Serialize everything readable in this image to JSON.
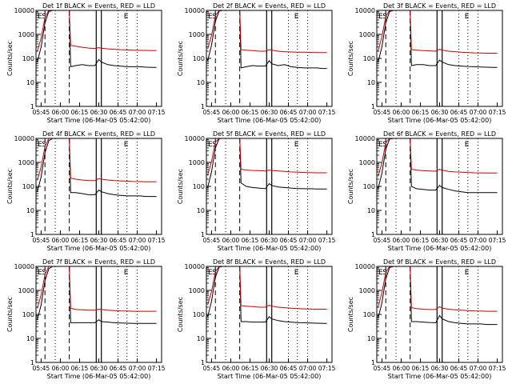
{
  "figure": {
    "colors": {
      "events": "#000000",
      "lld": "#cc0000",
      "axes": "#000000",
      "background": "#ffffff"
    },
    "shared": {
      "type": "line",
      "ylabel": "Counts/sec",
      "xlabel": "Start Time (06-Mar-05 05:42:00)",
      "y_scale": "log",
      "ylim": [
        1,
        10000
      ],
      "yticks": [
        "1",
        "10",
        "100",
        "1000",
        "10000"
      ],
      "xlim_minutes": [
        -1,
        97
      ],
      "xticks": [
        {
          "label": "05:45",
          "minutes": 3
        },
        {
          "label": "06:00",
          "minutes": 18
        },
        {
          "label": "06:15",
          "minutes": 33
        },
        {
          "label": "06:30",
          "minutes": 48
        },
        {
          "label": "06:45",
          "minutes": 63
        },
        {
          "label": "07:00",
          "minutes": 78
        },
        {
          "label": "07:15",
          "minutes": 93
        }
      ],
      "markers": [
        {
          "minutes": 6,
          "style": "dashed",
          "letter": "S"
        },
        {
          "minutes": 25,
          "style": "dashed",
          "letter": ""
        },
        {
          "minutes": 14,
          "style": "dotted",
          "letter": ""
        },
        {
          "minutes": 46,
          "style": "solid",
          "letter": ""
        },
        {
          "minutes": 50,
          "style": "solid",
          "letter": ""
        },
        {
          "minutes": 63,
          "style": "dotted",
          "letter": ""
        },
        {
          "minutes": 70,
          "style": "dotted",
          "letter": "E"
        },
        {
          "minutes": 78,
          "style": "dotted",
          "letter": ""
        }
      ],
      "start_letter": "E",
      "grid": false,
      "legend": "none"
    }
  },
  "chart_data": [
    {
      "type": "line",
      "title": "Det 1f BLACK = Events, RED = LLD",
      "series": [
        {
          "key": "events",
          "x": [
            0,
            3,
            6,
            9,
            12,
            14,
            25,
            26,
            30,
            35,
            40,
            45,
            48,
            50,
            55,
            60,
            65,
            70,
            75,
            80,
            85,
            90,
            93
          ],
          "values": [
            70,
            300,
            3000,
            9000,
            10000,
            10000,
            10000,
            45,
            50,
            55,
            50,
            50,
            90,
            70,
            55,
            50,
            48,
            45,
            45,
            45,
            43,
            42,
            42
          ]
        },
        {
          "key": "lld",
          "x": [
            0,
            3,
            6,
            9,
            12,
            14,
            25,
            26,
            30,
            35,
            40,
            45,
            48,
            50,
            55,
            60,
            65,
            70,
            75,
            80,
            85,
            90,
            93
          ],
          "values": [
            200,
            700,
            5000,
            10000,
            10000,
            10000,
            10000,
            350,
            320,
            290,
            270,
            260,
            280,
            270,
            250,
            240,
            230,
            225,
            220,
            215,
            215,
            212,
            210
          ]
        }
      ]
    },
    {
      "type": "line",
      "title": "Det 2f BLACK = Events, RED = LLD",
      "series": [
        {
          "key": "events",
          "x": [
            0,
            3,
            6,
            9,
            12,
            14,
            25,
            26,
            30,
            35,
            40,
            45,
            48,
            50,
            55,
            60,
            65,
            70,
            75,
            80,
            85,
            90,
            93
          ],
          "values": [
            80,
            350,
            3500,
            9500,
            10000,
            10000,
            10000,
            40,
            45,
            50,
            48,
            48,
            80,
            60,
            50,
            55,
            45,
            42,
            40,
            40,
            40,
            38,
            38
          ]
        },
        {
          "key": "lld",
          "x": [
            0,
            3,
            6,
            9,
            12,
            14,
            25,
            26,
            30,
            35,
            40,
            45,
            48,
            50,
            55,
            60,
            65,
            70,
            75,
            80,
            85,
            90,
            93
          ],
          "values": [
            250,
            900,
            6000,
            10000,
            10000,
            10000,
            10000,
            230,
            220,
            210,
            200,
            200,
            230,
            220,
            200,
            190,
            185,
            180,
            180,
            178,
            175,
            175,
            175
          ]
        }
      ]
    },
    {
      "type": "line",
      "title": "Det 3f BLACK = Events, RED = LLD",
      "series": [
        {
          "key": "events",
          "x": [
            0,
            3,
            6,
            9,
            12,
            14,
            25,
            26,
            30,
            35,
            40,
            45,
            48,
            50,
            55,
            60,
            65,
            70,
            75,
            80,
            85,
            90,
            93
          ],
          "values": [
            70,
            300,
            3000,
            9000,
            10000,
            10000,
            10000,
            50,
            55,
            55,
            50,
            50,
            85,
            70,
            55,
            50,
            48,
            46,
            45,
            44,
            43,
            42,
            42
          ]
        },
        {
          "key": "lld",
          "x": [
            0,
            3,
            6,
            9,
            12,
            14,
            25,
            26,
            30,
            35,
            40,
            45,
            48,
            50,
            55,
            60,
            65,
            70,
            75,
            80,
            85,
            90,
            93
          ],
          "values": [
            200,
            800,
            5500,
            10000,
            10000,
            10000,
            10000,
            230,
            220,
            210,
            205,
            200,
            240,
            220,
            200,
            190,
            180,
            175,
            170,
            168,
            165,
            165,
            165
          ]
        }
      ]
    },
    {
      "type": "line",
      "title": "Det 4f BLACK = Events, RED = LLD",
      "series": [
        {
          "key": "events",
          "x": [
            0,
            3,
            6,
            9,
            12,
            14,
            25,
            26,
            30,
            35,
            40,
            45,
            48,
            50,
            55,
            60,
            65,
            70,
            75,
            80,
            85,
            90,
            93
          ],
          "values": [
            60,
            250,
            2500,
            8000,
            10000,
            10000,
            10000,
            55,
            55,
            50,
            45,
            45,
            70,
            60,
            50,
            45,
            42,
            40,
            40,
            40,
            38,
            38,
            38
          ]
        },
        {
          "key": "lld",
          "x": [
            0,
            3,
            6,
            9,
            12,
            14,
            25,
            26,
            30,
            35,
            40,
            45,
            48,
            50,
            55,
            60,
            65,
            70,
            75,
            80,
            85,
            90,
            93
          ],
          "values": [
            180,
            650,
            4500,
            10000,
            10000,
            10000,
            10000,
            220,
            200,
            185,
            175,
            175,
            210,
            200,
            185,
            175,
            170,
            165,
            160,
            158,
            155,
            155,
            155
          ]
        }
      ]
    },
    {
      "type": "line",
      "title": "Det 5f BLACK = Events, RED = LLD",
      "series": [
        {
          "key": "events",
          "x": [
            0,
            3,
            6,
            9,
            12,
            14,
            25,
            26,
            30,
            35,
            40,
            45,
            48,
            50,
            55,
            60,
            65,
            70,
            75,
            80,
            85,
            90,
            93
          ],
          "values": [
            90,
            400,
            4000,
            9800,
            10000,
            10000,
            10000,
            140,
            100,
            90,
            85,
            80,
            130,
            110,
            95,
            90,
            85,
            82,
            80,
            80,
            78,
            78,
            78
          ]
        },
        {
          "key": "lld",
          "x": [
            0,
            3,
            6,
            9,
            12,
            14,
            25,
            26,
            30,
            35,
            40,
            45,
            48,
            50,
            55,
            60,
            65,
            70,
            75,
            80,
            85,
            90,
            93
          ],
          "values": [
            300,
            1100,
            7000,
            10000,
            10000,
            10000,
            10000,
            520,
            480,
            460,
            450,
            440,
            480,
            460,
            440,
            420,
            400,
            390,
            380,
            375,
            370,
            370,
            370
          ]
        }
      ]
    },
    {
      "type": "line",
      "title": "Det 6f BLACK = Events, RED = LLD",
      "series": [
        {
          "key": "events",
          "x": [
            0,
            3,
            6,
            9,
            12,
            14,
            25,
            26,
            30,
            35,
            40,
            45,
            48,
            50,
            55,
            60,
            65,
            70,
            75,
            80,
            85,
            90,
            93
          ],
          "values": [
            80,
            350,
            3500,
            9500,
            10000,
            10000,
            10000,
            100,
            80,
            75,
            70,
            70,
            110,
            90,
            75,
            65,
            60,
            55,
            55,
            55,
            55,
            55,
            55
          ]
        },
        {
          "key": "lld",
          "x": [
            0,
            3,
            6,
            9,
            12,
            14,
            25,
            26,
            30,
            35,
            40,
            45,
            48,
            50,
            55,
            60,
            65,
            70,
            75,
            80,
            85,
            90,
            93
          ],
          "values": [
            260,
            950,
            6500,
            10000,
            10000,
            10000,
            10000,
            520,
            480,
            450,
            440,
            430,
            520,
            470,
            420,
            400,
            390,
            380,
            370,
            365,
            360,
            360,
            360
          ]
        }
      ]
    },
    {
      "type": "line",
      "title": "Det 7f BLACK = Events, RED = LLD",
      "series": [
        {
          "key": "events",
          "x": [
            0,
            3,
            6,
            9,
            12,
            14,
            25,
            26,
            30,
            35,
            40,
            45,
            48,
            50,
            55,
            60,
            65,
            70,
            75,
            80,
            85,
            90,
            93
          ],
          "values": [
            60,
            250,
            2500,
            8000,
            10000,
            10000,
            10000,
            45,
            45,
            45,
            45,
            45,
            60,
            50,
            48,
            45,
            44,
            43,
            42,
            42,
            42,
            42,
            42
          ]
        },
        {
          "key": "lld",
          "x": [
            0,
            3,
            6,
            9,
            12,
            14,
            25,
            26,
            30,
            35,
            40,
            45,
            48,
            50,
            55,
            60,
            65,
            70,
            75,
            80,
            85,
            90,
            93
          ],
          "values": [
            180,
            650,
            4500,
            10000,
            10000,
            10000,
            10000,
            180,
            160,
            155,
            150,
            150,
            165,
            160,
            150,
            145,
            140,
            138,
            135,
            135,
            135,
            135,
            135
          ]
        }
      ]
    },
    {
      "type": "line",
      "title": "Det 8f BLACK = Events, RED = LLD",
      "series": [
        {
          "key": "events",
          "x": [
            0,
            3,
            6,
            9,
            12,
            14,
            25,
            26,
            30,
            35,
            40,
            45,
            48,
            50,
            55,
            60,
            65,
            70,
            75,
            80,
            85,
            90,
            93
          ],
          "values": [
            80,
            350,
            3500,
            9500,
            10000,
            10000,
            10000,
            50,
            50,
            48,
            48,
            48,
            80,
            65,
            55,
            50,
            48,
            45,
            45,
            44,
            43,
            42,
            42
          ]
        },
        {
          "key": "lld",
          "x": [
            0,
            3,
            6,
            9,
            12,
            14,
            25,
            26,
            30,
            35,
            40,
            45,
            48,
            50,
            55,
            60,
            65,
            70,
            75,
            80,
            85,
            90,
            93
          ],
          "values": [
            250,
            900,
            6000,
            10000,
            10000,
            10000,
            10000,
            230,
            220,
            210,
            200,
            200,
            240,
            220,
            200,
            190,
            180,
            175,
            170,
            168,
            165,
            165,
            165
          ]
        }
      ]
    },
    {
      "type": "line",
      "title": "Det 9f BLACK = Events, RED = LLD",
      "series": [
        {
          "key": "events",
          "x": [
            0,
            3,
            6,
            9,
            12,
            14,
            25,
            26,
            30,
            35,
            40,
            45,
            48,
            50,
            55,
            60,
            65,
            70,
            75,
            80,
            85,
            90,
            93
          ],
          "values": [
            70,
            300,
            3000,
            9000,
            10000,
            10000,
            10000,
            50,
            50,
            48,
            46,
            45,
            90,
            65,
            50,
            45,
            42,
            40,
            40,
            40,
            38,
            38,
            38
          ]
        },
        {
          "key": "lld",
          "x": [
            0,
            3,
            6,
            9,
            12,
            14,
            25,
            26,
            30,
            35,
            40,
            45,
            48,
            50,
            55,
            60,
            65,
            70,
            75,
            80,
            85,
            90,
            93
          ],
          "values": [
            200,
            800,
            5500,
            10000,
            10000,
            10000,
            10000,
            190,
            175,
            165,
            160,
            160,
            210,
            180,
            165,
            155,
            150,
            145,
            140,
            138,
            135,
            135,
            135
          ]
        }
      ]
    }
  ]
}
